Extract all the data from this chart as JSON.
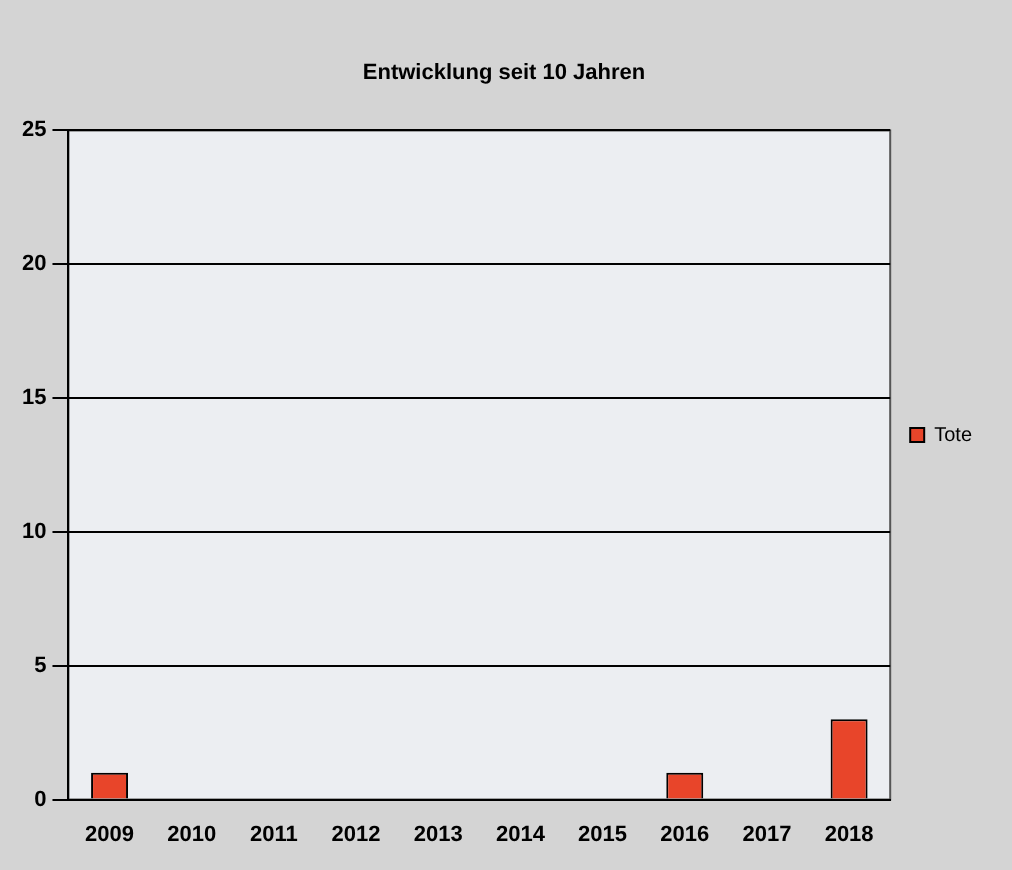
{
  "chart_data": {
    "type": "bar",
    "title": "Entwicklung seit 10 Jahren",
    "categories": [
      "2009",
      "2010",
      "2011",
      "2012",
      "2013",
      "2014",
      "2015",
      "2016",
      "2017",
      "2018"
    ],
    "series": [
      {
        "name": "Tote",
        "color": "#e8452a",
        "values": [
          1,
          0,
          0,
          0,
          0,
          0,
          0,
          1,
          0,
          3
        ]
      }
    ],
    "ylim": [
      0,
      25
    ],
    "yticks": [
      0,
      5,
      10,
      15,
      20,
      25
    ],
    "grid": "y",
    "legend": "right"
  }
}
